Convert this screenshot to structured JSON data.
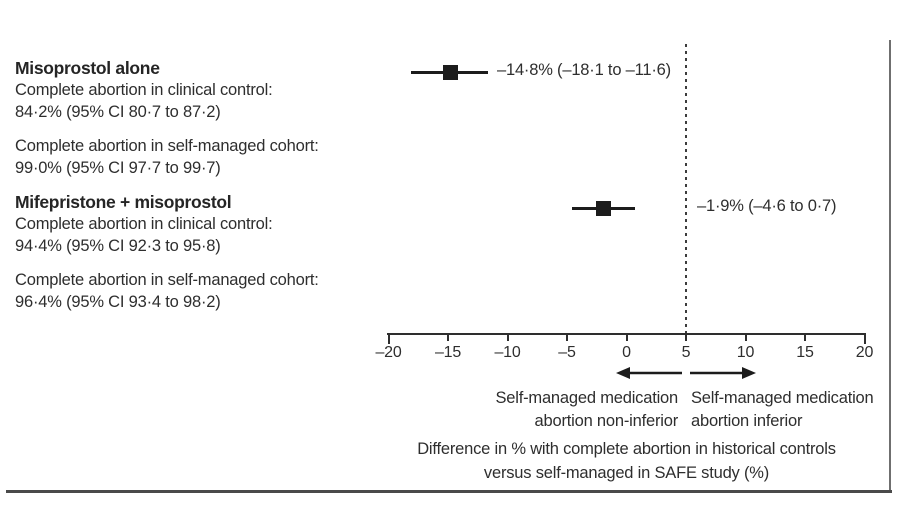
{
  "left_panel": {
    "groups": [
      {
        "title": "Misoprostol alone",
        "control_label": "Complete abortion in clinical control:",
        "control_value": "84·2% (95% CI 80·7 to 87·2)",
        "cohort_label": "Complete abortion in self-managed cohort:",
        "cohort_value": "99·0% (95% CI 97·7 to 99·7)"
      },
      {
        "title": "Mifepristone + misoprostol",
        "control_label": "Complete abortion in clinical control:",
        "control_value": "94·4% (95% CI 92·3 to 95·8)",
        "cohort_label": "Complete abortion in self-managed cohort:",
        "cohort_value": "96·4% (95% CI 93·4 to 98·2)"
      }
    ]
  },
  "plot_labels": {
    "left_arrow_line1": "Self-managed medication",
    "left_arrow_line2": "abortion non-inferior",
    "right_arrow_line1": "Self-managed medication",
    "right_arrow_line2": "abortion inferior",
    "caption_line1": "Difference in % with complete abortion in historical controls",
    "caption_line2": "versus self-managed in SAFE study (%)"
  },
  "chart_data": {
    "type": "scatter",
    "subtype": "forest-plot",
    "title": "",
    "xlabel": "Difference in % with complete abortion in historical controls versus self-managed in SAFE study (%)",
    "ylabel": "",
    "xlim": [
      -20,
      20
    ],
    "grid": false,
    "x_ticks": [
      -20,
      -15,
      -10,
      -5,
      0,
      5,
      10,
      15,
      20
    ],
    "x_tick_labels": [
      "–20",
      "–15",
      "–10",
      "–5",
      "0",
      "5",
      "10",
      "15",
      "20"
    ],
    "reference_line": {
      "x": 5,
      "style": "dashed"
    },
    "marker": "filled-square",
    "series": [
      {
        "name": "Misoprostol alone",
        "estimate": -14.8,
        "ci_low": -18.1,
        "ci_high": -11.6,
        "annotation": "–14·8% (–18·1 to –11·6)"
      },
      {
        "name": "Mifepristone + misoprostol",
        "estimate": -1.9,
        "ci_low": -4.6,
        "ci_high": 0.7,
        "annotation": "–1·9% (–4·6 to 0·7)"
      }
    ],
    "arrow_annotations": [
      {
        "direction": "left",
        "text": "Self-managed medication abortion non-inferior"
      },
      {
        "direction": "right",
        "text": "Self-managed medication abortion inferior"
      }
    ],
    "colors": {
      "marker": "#1c1c1c",
      "ci_line": "#1c1c1c",
      "axis": "#2e2e2e",
      "text": "#2e2e2e",
      "reference_line": "#3c3c3c"
    }
  }
}
